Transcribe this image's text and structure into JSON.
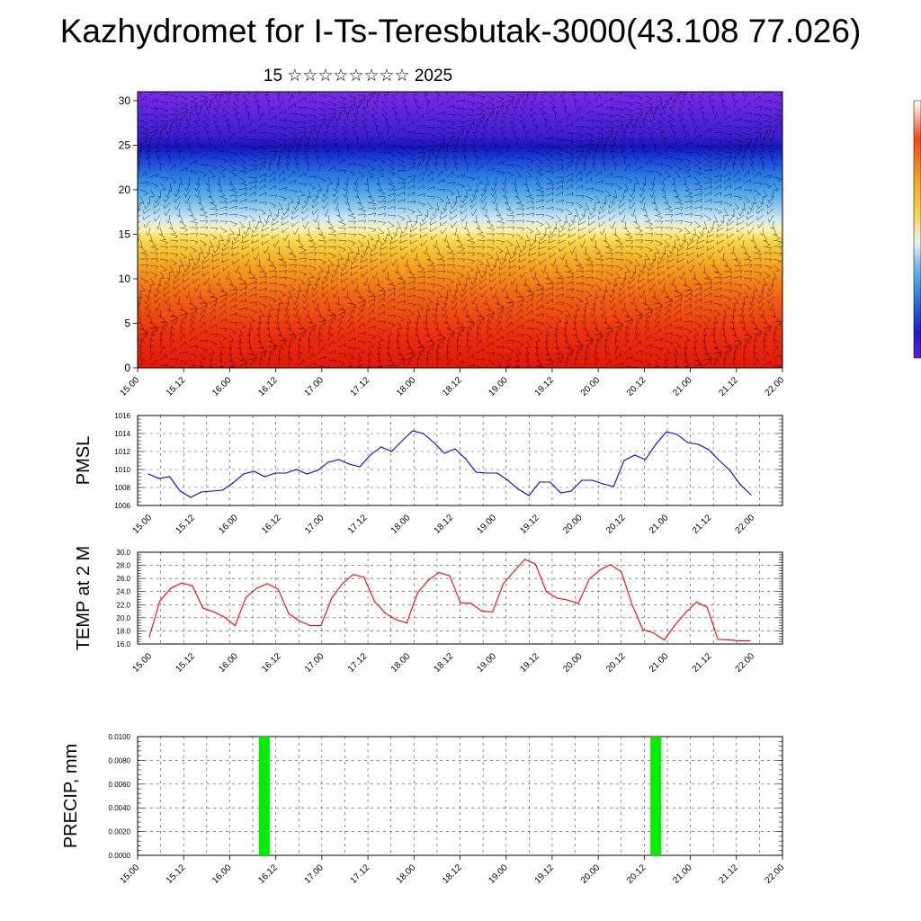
{
  "title": "Kazhydromet for I-Ts-Teresbutak-3000(43.108 77.026)",
  "subtitle": "15 ☆☆☆☆☆☆☆☆ 2025",
  "x_ticks": [
    "15.00",
    "15.12",
    "16.00",
    "16.12",
    "17.00",
    "17.12",
    "18.00",
    "18.12",
    "19.00",
    "19.12",
    "20.00",
    "20.12",
    "21.00",
    "21.12",
    "22.00"
  ],
  "colors": {
    "pmsl_line": "#0000ff",
    "temp_line": "#ff0000",
    "precip_bar": "#00ee00",
    "grid": "#000000"
  },
  "chart_data": [
    {
      "type": "heatmap",
      "panel": "vertical-profile",
      "xlabel": "",
      "ylabel": "",
      "ylim": [
        0,
        31
      ],
      "y_ticks": [
        0,
        5,
        10,
        15,
        20,
        25,
        30
      ],
      "x_ticks": [
        "15.00",
        "15.12",
        "16.00",
        "16.12",
        "17.00",
        "17.12",
        "18.00",
        "18.12",
        "19.00",
        "19.12",
        "20.00",
        "20.12",
        "21.00",
        "21.12",
        "22.00"
      ],
      "colorscale": [
        "#7b2ae8",
        "#1a1acc",
        "#3a8de6",
        "#e8f2f7",
        "#f5e060",
        "#f5a21e",
        "#f04a0c",
        "#e01a0a"
      ],
      "overlay": "wind-barbs",
      "legend": "right-colorbar"
    },
    {
      "type": "line",
      "panel": "pmsl",
      "ylabel": "PMSL",
      "ylim": [
        1006,
        1016
      ],
      "y_ticks": [
        "1006",
        "1008",
        "1010",
        "1012",
        "1014",
        "1016"
      ],
      "x_ticks": [
        "15.00",
        "15.12",
        "16.00",
        "16.12",
        "17.00",
        "17.12",
        "18.00",
        "18.12",
        "19.00",
        "19.12",
        "20.00",
        "20.12",
        "21.00",
        "21.12",
        "22.00"
      ],
      "series": [
        {
          "values": [
            1009.5,
            1009.0,
            1009.2,
            1007.6,
            1006.9,
            1007.5,
            1007.6,
            1007.7,
            1008.5,
            1009.5,
            1009.8,
            1009.2,
            1009.6,
            1009.6,
            1010.0,
            1009.5,
            1009.9,
            1010.8,
            1011.1,
            1010.6,
            1010.3,
            1011.6,
            1012.5,
            1012.0,
            1013.2,
            1014.3,
            1014.0,
            1013.0,
            1011.8,
            1012.3,
            1011.2,
            1009.7,
            1009.6,
            1009.6,
            1008.8,
            1007.8,
            1007.1,
            1008.6,
            1008.6,
            1007.4,
            1007.6,
            1008.8,
            1008.8,
            1008.4,
            1008.1,
            1011.0,
            1011.6,
            1011.1,
            1012.8,
            1014.2,
            1013.9,
            1013.0,
            1012.8,
            1012.2,
            1011.0,
            1009.9,
            1008.3,
            1007.2
          ]
        }
      ],
      "grid": true
    },
    {
      "type": "line",
      "panel": "temp",
      "ylabel": "TEMP at 2 M",
      "ylim": [
        16.0,
        30.0
      ],
      "y_ticks": [
        "16.0",
        "18.0",
        "20.0",
        "22.0",
        "24.0",
        "26.0",
        "28.0",
        "30.0"
      ],
      "x_ticks": [
        "15.00",
        "15.12",
        "16.00",
        "16.12",
        "17.00",
        "17.12",
        "18.00",
        "18.12",
        "19.00",
        "19.12",
        "20.00",
        "20.12",
        "21.00",
        "21.12",
        "22.00"
      ],
      "series": [
        {
          "values": [
            17.1,
            22.6,
            24.5,
            25.3,
            24.9,
            21.5,
            20.9,
            20.1,
            18.8,
            23.1,
            24.5,
            25.2,
            24.4,
            20.6,
            19.5,
            18.8,
            18.8,
            23.0,
            25.2,
            26.6,
            26.2,
            22.5,
            20.7,
            19.7,
            19.2,
            23.8,
            25.7,
            26.9,
            26.4,
            22.3,
            22.2,
            21.0,
            20.9,
            25.2,
            27.1,
            28.9,
            28.2,
            24.0,
            23.0,
            22.7,
            22.2,
            25.9,
            27.3,
            28.1,
            27.0,
            22.0,
            18.2,
            17.7,
            16.6,
            18.9,
            20.8,
            22.4,
            21.6,
            16.7,
            16.6,
            16.5,
            16.5
          ]
        }
      ],
      "grid": true
    },
    {
      "type": "bar",
      "panel": "precip",
      "ylabel": "PRECIP, mm",
      "ylim": [
        0.0,
        0.01
      ],
      "y_ticks": [
        "0.0000",
        "0.0020",
        "0.0040",
        "0.0060",
        "0.0080",
        "0.0100"
      ],
      "x_ticks": [
        "15.00",
        "15.12",
        "16.00",
        "16.12",
        "17.00",
        "17.12",
        "18.00",
        "18.12",
        "19.00",
        "19.12",
        "20.00",
        "20.12",
        "21.00",
        "21.12",
        "22.00"
      ],
      "bars": [
        {
          "x": "16.09",
          "value": 0.01
        },
        {
          "x": "20.15",
          "value": 0.01
        }
      ],
      "grid": true
    }
  ]
}
